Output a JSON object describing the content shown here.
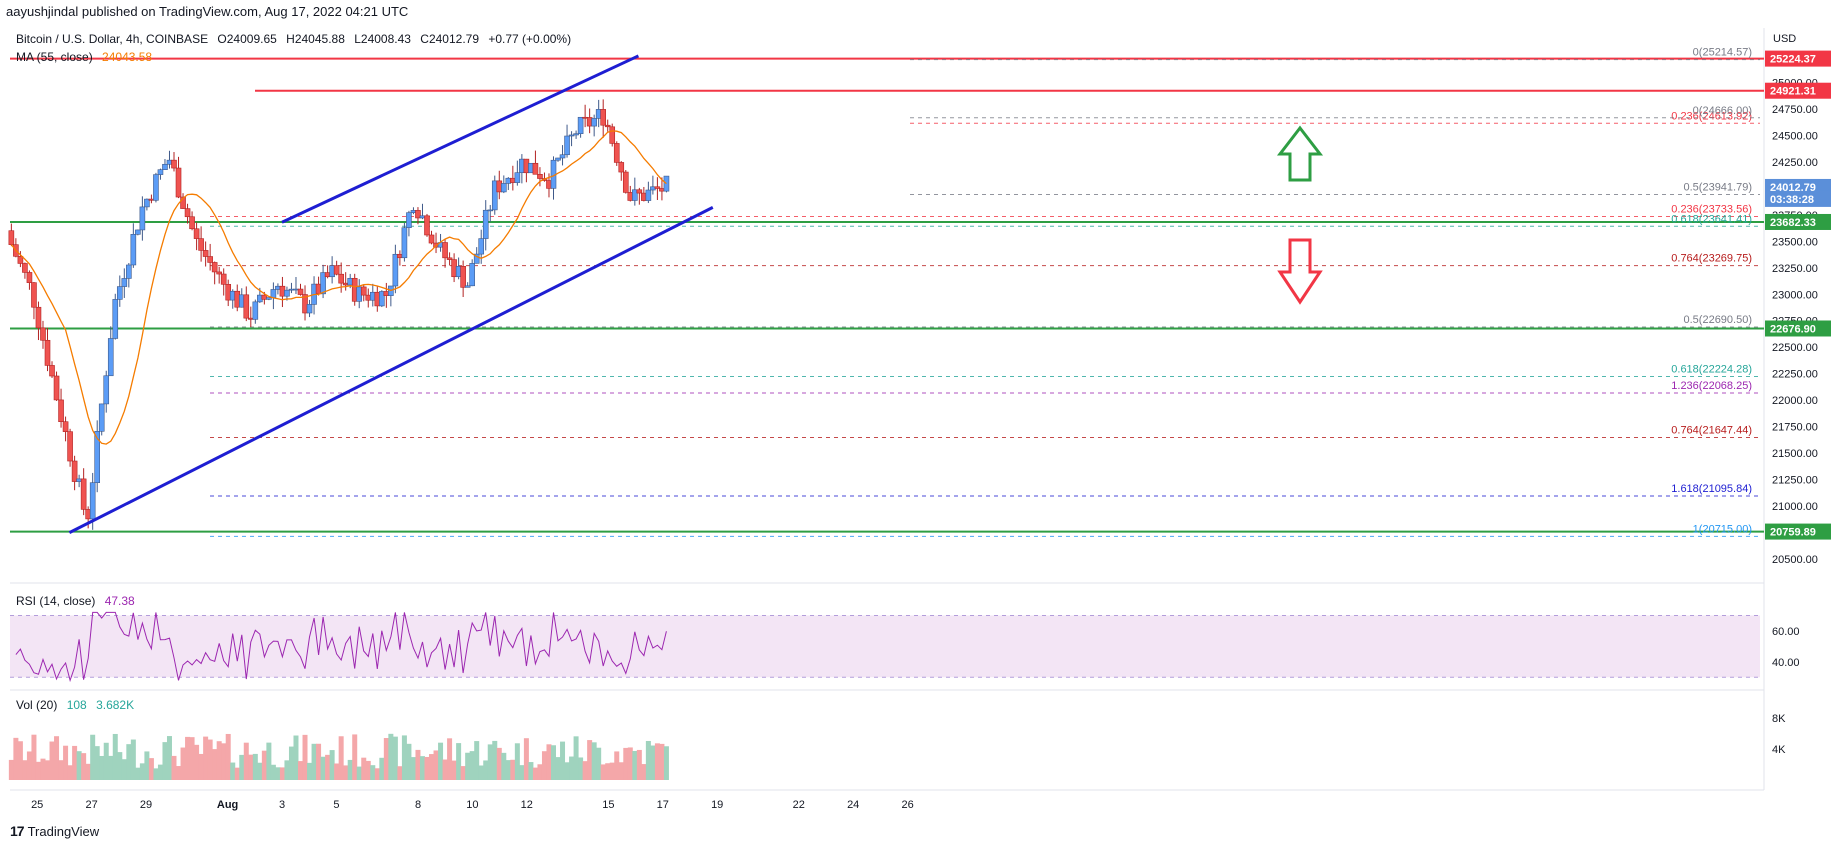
{
  "header": {
    "publish_text": "aayushjindal published on TradingView.com, Aug 17, 2022 04:21 UTC",
    "symbol": "Bitcoin / U.S. Dollar, 4h, COINBASE",
    "open": "O24009.65",
    "high": "H24045.88",
    "low": "L24008.43",
    "close": "C24012.79",
    "change": "+0.77 (+0.00%)",
    "ma_label": "MA (55, close)",
    "ma_value": "24043.58",
    "rsi_label": "RSI (14, close)",
    "rsi_value": "47.38",
    "vol_label": "Vol (20)",
    "vol_value1": "108",
    "vol_value2": "3.682K"
  },
  "branding": {
    "logo": "17",
    "name": "TradingView"
  },
  "colors": {
    "up": "#26a69a",
    "up_fill": "#5b9cf6",
    "down": "#ef5350",
    "ma": "#f57c00",
    "channel": "#1e1ed2",
    "support": "#2e9e43",
    "resistance": "#f23645",
    "rsi": "#9c27b0",
    "rsi_band": "#f3e5f5",
    "vol_up": "#9fd3be",
    "vol_down": "#f4a7a9"
  },
  "chart_data": {
    "type": "candlestick",
    "title": "Bitcoin / U.S. Dollar, 4h, COINBASE",
    "x_ticks": [
      "25",
      "27",
      "29",
      "Aug",
      "3",
      "5",
      "8",
      "10",
      "12",
      "15",
      "17",
      "19",
      "22",
      "24",
      "26"
    ],
    "y_axis": {
      "label": "USD",
      "ylim": [
        20350,
        25400
      ],
      "ticks": [
        "25000.00",
        "24750.00",
        "24500.00",
        "24250.00",
        "23750.00",
        "23500.00",
        "23250.00",
        "23000.00",
        "22750.00",
        "22500.00",
        "22250.00",
        "22000.00",
        "21750.00",
        "21500.00",
        "21250.00",
        "21000.00",
        "20500.00"
      ]
    },
    "price_badges": [
      {
        "label": "25224.37",
        "value": 25224.37,
        "color": "#f23645"
      },
      {
        "label": "24921.31",
        "value": 24921.31,
        "color": "#f23645"
      },
      {
        "label": "24012.79",
        "value": 24012.79,
        "color": "#5b8fd9"
      },
      {
        "label": "03:38:28",
        "value": 23900,
        "color": "#5b8fd9"
      },
      {
        "label": "23682.33",
        "value": 23682.33,
        "color": "#2e9e43"
      },
      {
        "label": "22676.90",
        "value": 22676.9,
        "color": "#2e9e43"
      },
      {
        "label": "20759.89",
        "value": 20759.89,
        "color": "#2e9e43"
      }
    ],
    "fib_levels": [
      {
        "label": "0(25214.57)",
        "value": 25214.57,
        "color": "#787b86"
      },
      {
        "label": "0.236(24613.92)",
        "value": 24613.92,
        "color": "#f23645"
      },
      {
        "label": "0(24666.00)",
        "value": 24666.0,
        "color": "#787b86"
      },
      {
        "label": "0.5(23941.79)",
        "value": 23941.79,
        "color": "#787b86"
      },
      {
        "label": "0.236(23733.56)",
        "value": 23733.56,
        "color": "#f23645"
      },
      {
        "label": "0.618(23641.41)",
        "value": 23641.41,
        "color": "#26a69a"
      },
      {
        "label": "0.764(23269.75)",
        "value": 23269.75,
        "color": "#b71c1c"
      },
      {
        "label": "0.5(22690.50)",
        "value": 22690.5,
        "color": "#787b86"
      },
      {
        "label": "0.618(22224.28)",
        "value": 22224.28,
        "color": "#26a69a"
      },
      {
        "label": "1.236(22068.25)",
        "value": 22068.25,
        "color": "#9c27b0"
      },
      {
        "label": "0.764(21647.44)",
        "value": 21647.44,
        "color": "#b71c1c"
      },
      {
        "label": "1.618(21095.84)",
        "value": 21095.84,
        "color": "#1e1ed2"
      },
      {
        "label": "1(20715.00)",
        "value": 20715.0,
        "color": "#2196f3"
      }
    ],
    "resistance": [
      25224.37,
      24921.31
    ],
    "support": [
      23682.33,
      22676.9,
      20759.89
    ],
    "channel_upper": [
      {
        "date": "Aug 3",
        "value": 23680
      },
      {
        "date": "Aug 15",
        "value": 25250
      }
    ],
    "channel_lower": [
      {
        "date": "Jul 26",
        "value": 20750
      },
      {
        "date": "Aug 17",
        "value": 23820
      }
    ],
    "rsi": {
      "ticks": [
        "60.00",
        "40.00"
      ],
      "ylim": [
        25,
        80
      ]
    },
    "volume": {
      "ticks": [
        "8K",
        "4K"
      ],
      "ylim": [
        0,
        11000
      ]
    }
  }
}
